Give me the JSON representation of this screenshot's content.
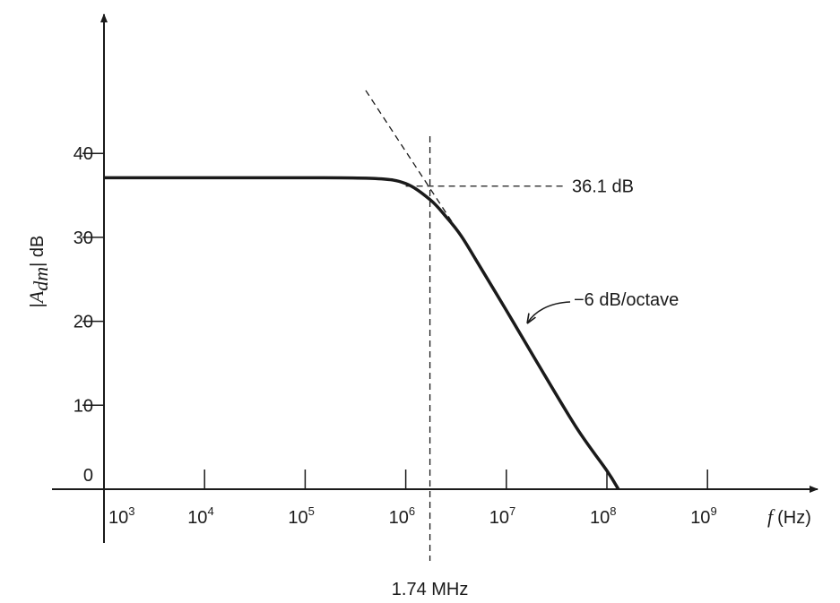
{
  "chart_data": {
    "type": "line",
    "title": "",
    "xlabel": {
      "symbol": "f",
      "unit": "(Hz)"
    },
    "ylabel": {
      "prefix": "|",
      "symbol": "A",
      "subscript": "dm",
      "suffix": "| dB"
    },
    "x_scale": "log",
    "x_ticks": [
      {
        "base": "10",
        "exp": "3",
        "value": 1000
      },
      {
        "base": "10",
        "exp": "4",
        "value": 10000
      },
      {
        "base": "10",
        "exp": "5",
        "value": 100000
      },
      {
        "base": "10",
        "exp": "6",
        "value": 1000000
      },
      {
        "base": "10",
        "exp": "7",
        "value": 10000000
      },
      {
        "base": "10",
        "exp": "8",
        "value": 100000000
      },
      {
        "base": "10",
        "exp": "9",
        "value": 1000000000
      }
    ],
    "y_ticks": [
      "0",
      "10",
      "20",
      "30",
      "40"
    ],
    "ylim": [
      0,
      50
    ],
    "xlim_exp": [
      3,
      9.7
    ],
    "grid": false,
    "series": [
      {
        "x": [
          1000,
          10000,
          100000,
          500000,
          1000000,
          1740000,
          2500000,
          3500000,
          5000000,
          10000000,
          20000000,
          50000000,
          100000000,
          130000000
        ],
        "y": [
          37.1,
          37.1,
          37.1,
          37.0,
          36.4,
          34.5,
          32.5,
          30.3,
          27.3,
          21.3,
          15.2,
          7.3,
          2.2,
          0
        ]
      }
    ],
    "asymptote": {
      "x": [
        400000,
        3500000
      ],
      "y": [
        47.5,
        30.3
      ]
    },
    "annotations": {
      "level": {
        "text": "36.1 dB",
        "value": 36.1,
        "x_start": 1000000
      },
      "corner": {
        "text": "1.74 MHz",
        "value": 1740000
      },
      "slope": {
        "text": "−6 dB/octave",
        "point_x": 15000000,
        "point_y": 19.4
      }
    }
  }
}
